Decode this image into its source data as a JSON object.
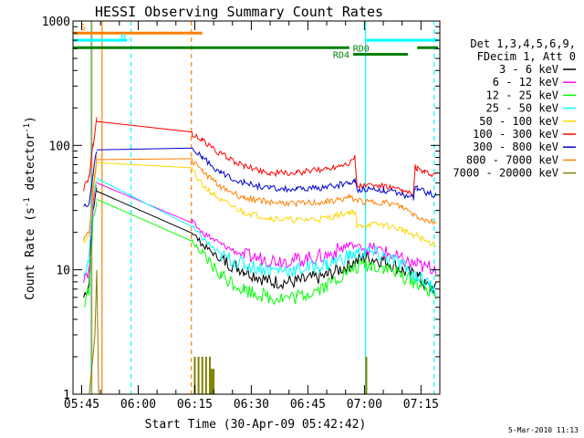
{
  "chart_data": {
    "type": "line",
    "title": "HESSI Observing Summary Count Rates",
    "xlabel": "Start Time (30-Apr-09 05:42:42)",
    "ylabel_parts": [
      "Count Rate (s",
      "-1",
      " detector",
      "-1",
      ")"
    ],
    "y_scale": "log",
    "ylim": [
      1,
      1000
    ],
    "xlim_minutes_after_0540": [
      2.7,
      100
    ],
    "x_ticks": [
      {
        "label": "05:45",
        "min": 5
      },
      {
        "label": "06:00",
        "min": 20
      },
      {
        "label": "06:15",
        "min": 35
      },
      {
        "label": "06:30",
        "min": 50
      },
      {
        "label": "06:45",
        "min": 65
      },
      {
        "label": "07:00",
        "min": 80
      },
      {
        "label": "07:15",
        "min": 95
      }
    ],
    "y_ticks": [
      {
        "label": "1",
        "v": 1
      },
      {
        "label": "10",
        "v": 10
      },
      {
        "label": "100",
        "v": 100
      },
      {
        "label": "1000",
        "v": 1000
      }
    ],
    "legend_header": [
      "Det 1,3,4,5,6,9,",
      "FDecim 1, Att 0"
    ],
    "legend_position": "right",
    "series": [
      {
        "name": "3 - 6 keV",
        "color": "#000000",
        "points": [
          [
            5.5,
            6
          ],
          [
            7,
            8
          ],
          [
            8,
            30
          ],
          [
            9,
            45
          ],
          [
            34.3,
            20
          ],
          [
            37,
            16
          ],
          [
            42,
            12
          ],
          [
            48,
            10
          ],
          [
            55,
            8
          ],
          [
            62,
            8
          ],
          [
            70,
            9
          ],
          [
            76,
            11
          ],
          [
            80,
            12.5
          ],
          [
            85,
            12
          ],
          [
            90,
            10
          ],
          [
            93,
            9
          ],
          [
            94,
            9
          ],
          [
            96,
            7.5
          ],
          [
            99,
            7
          ]
        ]
      },
      {
        "name": "6 - 12 keV",
        "color": "#ff00ff",
        "points": [
          [
            5.5,
            9
          ],
          [
            7,
            10
          ],
          [
            8,
            35
          ],
          [
            9,
            50
          ],
          [
            34.3,
            24
          ],
          [
            37,
            20
          ],
          [
            42,
            16
          ],
          [
            48,
            13
          ],
          [
            55,
            12
          ],
          [
            62,
            12
          ],
          [
            70,
            13
          ],
          [
            76,
            16
          ],
          [
            80,
            15
          ],
          [
            85,
            14
          ],
          [
            90,
            12
          ],
          [
            93,
            11
          ],
          [
            94,
            11
          ],
          [
            96,
            10.5
          ],
          [
            99,
            10.5
          ]
        ]
      },
      {
        "name": "12 - 25 keV",
        "color": "#00ff00",
        "points": [
          [
            5.5,
            5
          ],
          [
            7,
            7
          ],
          [
            8,
            25
          ],
          [
            9,
            35
          ],
          [
            34.3,
            17
          ],
          [
            37,
            13
          ],
          [
            42,
            9
          ],
          [
            48,
            7
          ],
          [
            55,
            6
          ],
          [
            62,
            6
          ],
          [
            70,
            7.5
          ],
          [
            76,
            10
          ],
          [
            80,
            11
          ],
          [
            85,
            10.5
          ],
          [
            90,
            9
          ],
          [
            93,
            8
          ],
          [
            94,
            8
          ],
          [
            96,
            7
          ],
          [
            99,
            6.5
          ]
        ]
      },
      {
        "name": "25 - 50 keV",
        "color": "#00ffff",
        "points": [
          [
            5.5,
            10
          ],
          [
            7,
            12
          ],
          [
            8,
            40
          ],
          [
            9,
            55
          ],
          [
            34.3,
            22
          ],
          [
            37,
            18
          ],
          [
            42,
            13
          ],
          [
            48,
            11
          ],
          [
            55,
            10
          ],
          [
            62,
            10
          ],
          [
            70,
            11
          ],
          [
            76,
            13
          ],
          [
            80,
            14
          ],
          [
            85,
            13
          ],
          [
            90,
            11
          ],
          [
            93,
            9
          ],
          [
            94,
            9
          ],
          [
            96,
            8
          ],
          [
            99,
            7
          ]
        ]
      },
      {
        "name": "50 - 100 keV",
        "color": "#ffd700",
        "points": [
          [
            5.5,
            17
          ],
          [
            7,
            19
          ],
          [
            8,
            40
          ],
          [
            9,
            70
          ],
          [
            34.3,
            65
          ],
          [
            37,
            48
          ],
          [
            42,
            36
          ],
          [
            48,
            29
          ],
          [
            55,
            26
          ],
          [
            62,
            25
          ],
          [
            70,
            26
          ],
          [
            76,
            29
          ],
          [
            77.5,
            29.5
          ],
          [
            78,
            22
          ],
          [
            80,
            23
          ],
          [
            85,
            23
          ],
          [
            90,
            21
          ],
          [
            93,
            19
          ],
          [
            94,
            19
          ],
          [
            96,
            17
          ],
          [
            99,
            16
          ]
        ]
      },
      {
        "name": "100 - 300 keV",
        "color": "#ff0000",
        "points": [
          [
            5.5,
            45
          ],
          [
            7,
            55
          ],
          [
            8,
            100
          ],
          [
            9,
            160
          ],
          [
            34.3,
            125
          ],
          [
            37,
            110
          ],
          [
            42,
            85
          ],
          [
            48,
            68
          ],
          [
            55,
            60
          ],
          [
            62,
            60
          ],
          [
            70,
            65
          ],
          [
            76,
            73
          ],
          [
            77.5,
            80
          ],
          [
            78,
            47
          ],
          [
            80,
            48
          ],
          [
            85,
            47
          ],
          [
            90,
            43
          ],
          [
            93,
            40
          ],
          [
            93.5,
            68
          ],
          [
            94,
            65
          ],
          [
            96,
            60
          ],
          [
            99,
            58
          ]
        ]
      },
      {
        "name": "300 - 800 keV",
        "color": "#0000cc",
        "points": [
          [
            5.5,
            32
          ],
          [
            7,
            35
          ],
          [
            8,
            60
          ],
          [
            9,
            90
          ],
          [
            34.3,
            92
          ],
          [
            37,
            80
          ],
          [
            42,
            60
          ],
          [
            48,
            50
          ],
          [
            55,
            45
          ],
          [
            62,
            44
          ],
          [
            70,
            46
          ],
          [
            76,
            50
          ],
          [
            77.5,
            52
          ],
          [
            78,
            44
          ],
          [
            80,
            45
          ],
          [
            85,
            44
          ],
          [
            90,
            40
          ],
          [
            93,
            38
          ],
          [
            93.5,
            47
          ],
          [
            94,
            45
          ],
          [
            96,
            42
          ],
          [
            99,
            40
          ]
        ]
      },
      {
        "name": "800 - 7000 keV",
        "color": "#ff8000",
        "points": [
          [
            5.5,
            18
          ],
          [
            7,
            20
          ],
          [
            8,
            45
          ],
          [
            9,
            80
          ],
          [
            34.3,
            75
          ],
          [
            37,
            62
          ],
          [
            42,
            46
          ],
          [
            48,
            38
          ],
          [
            55,
            35
          ],
          [
            62,
            34
          ],
          [
            70,
            35
          ],
          [
            76,
            38
          ],
          [
            80,
            35
          ],
          [
            85,
            35
          ],
          [
            90,
            32
          ],
          [
            93,
            28
          ],
          [
            94,
            27
          ],
          [
            96,
            25
          ],
          [
            99,
            24
          ]
        ]
      },
      {
        "name": "7000 - 20000 keV",
        "color": "#808000",
        "points": [
          [
            7,
            1
          ],
          [
            8,
            2
          ],
          [
            8.5,
            3
          ],
          [
            9,
            10
          ],
          [
            9.5,
            1
          ]
        ]
      }
    ],
    "bursts_7000_20000": [
      [
        35,
        2
      ],
      [
        36,
        2
      ],
      [
        37,
        2
      ],
      [
        38,
        2
      ],
      [
        39,
        2
      ],
      [
        39.5,
        1.6
      ],
      [
        40,
        1.6
      ],
      [
        80.5,
        2
      ]
    ],
    "state_bars": [
      {
        "label": "S",
        "color": "#ff8000",
        "x_from": 2.7,
        "x_to": 37,
        "y": 800
      },
      {
        "label": "N",
        "color": "#00ffff",
        "x_from": 2.7,
        "x_to": 17,
        "y": 700
      },
      {
        "label": "",
        "color": "#00ffff",
        "x_from": 80.5,
        "x_to": 99.5,
        "y": 700
      },
      {
        "label": "RD0",
        "color": "#008000",
        "x_from": 2.7,
        "x_to": 76,
        "y": 610
      },
      {
        "label": "",
        "color": "#008000",
        "x_from": 94,
        "x_to": 99.5,
        "y": 610
      },
      {
        "label": "RD4",
        "color": "#008000",
        "x_from": 77,
        "x_to": 91.5,
        "y": 540
      }
    ],
    "vertical_markers": [
      {
        "min": 7.5,
        "color": "#00ffff",
        "style": "solid"
      },
      {
        "min": 7.7,
        "color": "#ff8000",
        "style": "solid"
      },
      {
        "min": 10.4,
        "color": "#ff8000",
        "style": "solid"
      },
      {
        "min": 18.1,
        "color": "#00ffff",
        "style": "dashed"
      },
      {
        "min": 34.1,
        "color": "#ff8000",
        "style": "dashed"
      },
      {
        "min": 80.3,
        "color": "#00ffff",
        "style": "solid"
      },
      {
        "min": 98.5,
        "color": "#00ffff",
        "style": "dashed"
      }
    ],
    "footer_date": "5-Mar-2010 11:13"
  }
}
